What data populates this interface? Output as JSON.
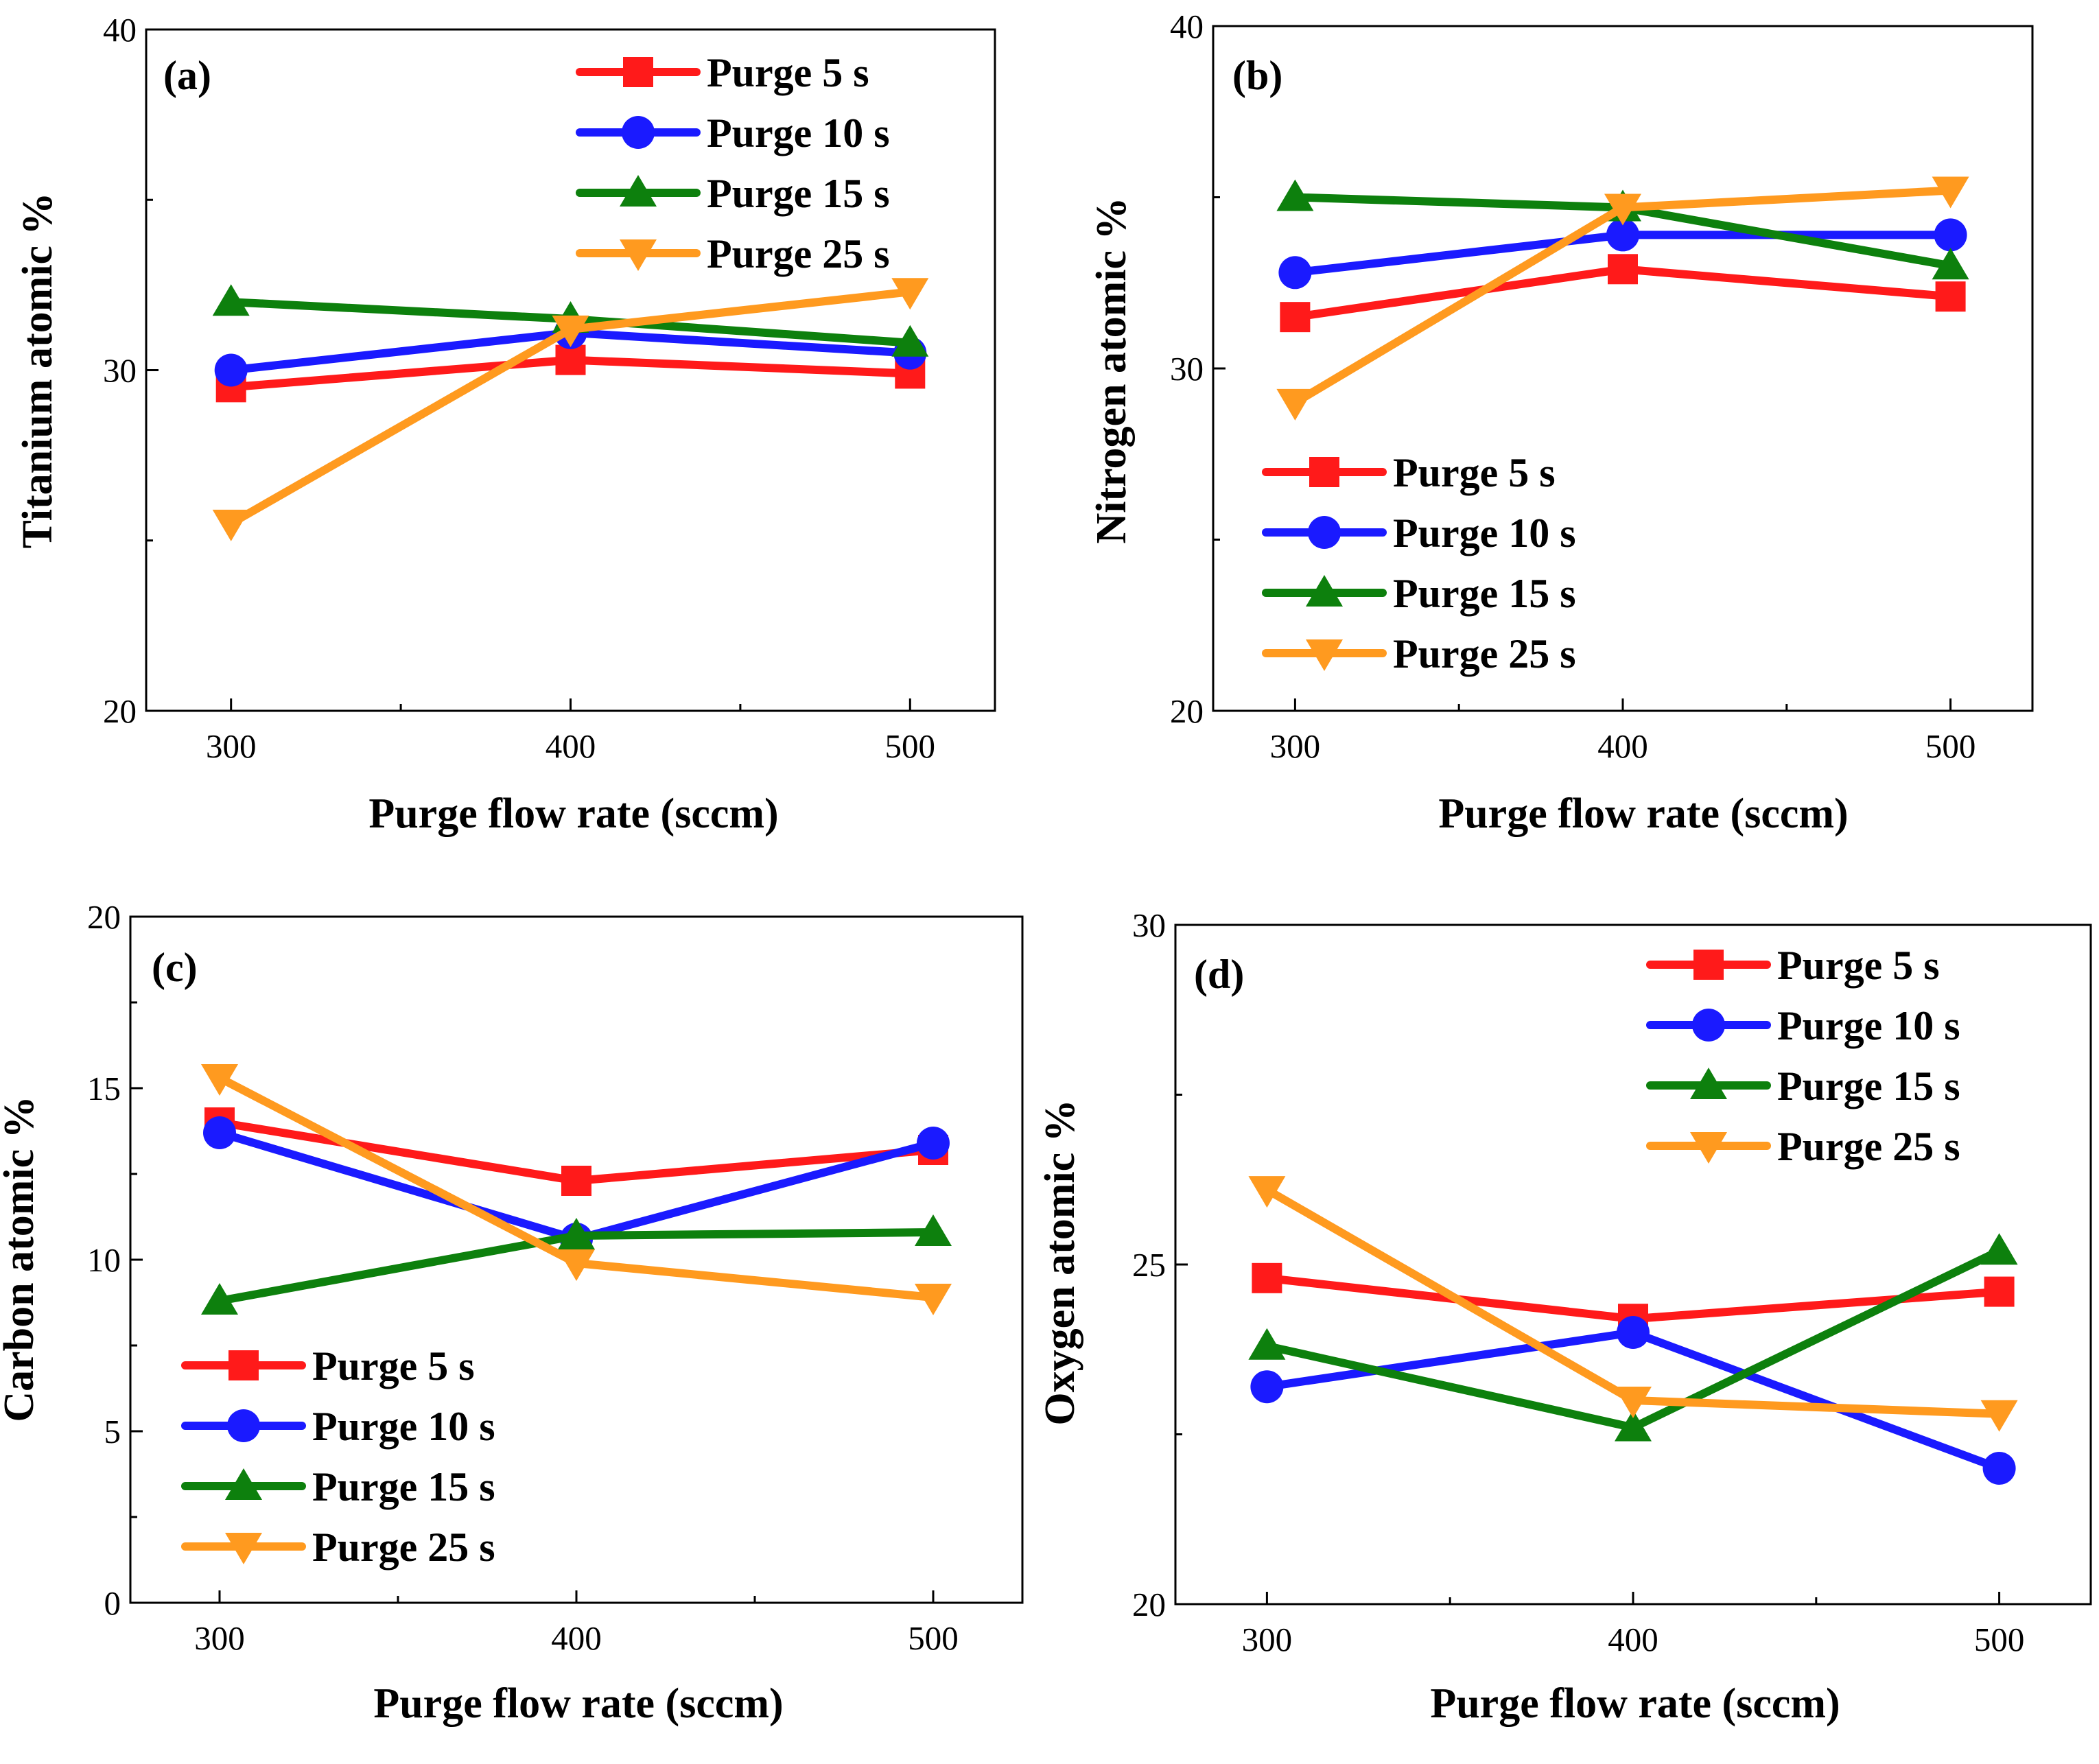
{
  "figure": {
    "colors": {
      "Purge 5 s": "#ff1a1a",
      "Purge 10 s": "#1a1aff",
      "Purge 15 s": "#0d800d",
      "Purge 25 s": "#ff9a1f"
    },
    "markers": {
      "Purge 5 s": "square",
      "Purge 10 s": "circle",
      "Purge 15 s": "triangle-up",
      "Purge 25 s": "triangle-down"
    }
  },
  "chart_data": [
    {
      "type": "line",
      "panel": "(a)",
      "xlabel": "Purge flow rate (sccm)",
      "ylabel": "Titanium atomic %",
      "x": [
        300,
        400,
        500
      ],
      "xticks": [
        300,
        400,
        500
      ],
      "xlim": [
        275,
        525
      ],
      "ylim": [
        20,
        40
      ],
      "yticks": [
        20,
        30,
        40
      ],
      "legend_position": "top-right",
      "series": [
        {
          "name": "Purge 5 s",
          "values": [
            29.5,
            30.3,
            29.9
          ]
        },
        {
          "name": "Purge 10 s",
          "values": [
            30.0,
            31.1,
            30.5
          ]
        },
        {
          "name": "Purge 15 s",
          "values": [
            32.0,
            31.5,
            30.8
          ]
        },
        {
          "name": "Purge 25 s",
          "values": [
            25.5,
            31.2,
            32.3
          ]
        }
      ]
    },
    {
      "type": "line",
      "panel": "(b)",
      "xlabel": "Purge flow rate (sccm)",
      "ylabel": "Nitrogen atomic %",
      "x": [
        300,
        400,
        500
      ],
      "xticks": [
        300,
        400,
        500
      ],
      "xlim": [
        275,
        525
      ],
      "ylim": [
        20,
        40
      ],
      "yticks": [
        20,
        30,
        40
      ],
      "legend_position": "bottom-left",
      "series": [
        {
          "name": "Purge 5 s",
          "values": [
            31.5,
            32.9,
            32.1
          ]
        },
        {
          "name": "Purge 10 s",
          "values": [
            32.8,
            33.9,
            33.9
          ]
        },
        {
          "name": "Purge 15 s",
          "values": [
            35.0,
            34.7,
            33.0
          ]
        },
        {
          "name": "Purge 25 s",
          "values": [
            29.0,
            34.7,
            35.2
          ]
        }
      ]
    },
    {
      "type": "line",
      "panel": "(c)",
      "xlabel": "Purge flow rate (sccm)",
      "ylabel": "Carbon atomic %",
      "x": [
        300,
        400,
        500
      ],
      "xticks": [
        300,
        400,
        500
      ],
      "xlim": [
        275,
        525
      ],
      "ylim": [
        0,
        20
      ],
      "yticks": [
        0,
        5,
        10,
        15,
        20
      ],
      "legend_position": "bottom-left",
      "series": [
        {
          "name": "Purge 5 s",
          "values": [
            14.0,
            12.3,
            13.2
          ]
        },
        {
          "name": "Purge 10 s",
          "values": [
            13.7,
            10.6,
            13.4
          ]
        },
        {
          "name": "Purge 15 s",
          "values": [
            8.8,
            10.7,
            10.8
          ]
        },
        {
          "name": "Purge 25 s",
          "values": [
            15.3,
            9.9,
            8.9
          ]
        }
      ]
    },
    {
      "type": "line",
      "panel": "(d)",
      "xlabel": "Purge flow rate (sccm)",
      "ylabel": "Oxygen atomic %",
      "x": [
        300,
        400,
        500
      ],
      "xticks": [
        300,
        400,
        500
      ],
      "xlim": [
        275,
        525
      ],
      "ylim": [
        20,
        30
      ],
      "yticks": [
        20,
        25,
        30
      ],
      "legend_position": "top-right",
      "series": [
        {
          "name": "Purge 5 s",
          "values": [
            24.8,
            24.2,
            24.6
          ]
        },
        {
          "name": "Purge 10 s",
          "values": [
            23.2,
            24.0,
            22.0
          ]
        },
        {
          "name": "Purge 15 s",
          "values": [
            23.8,
            22.6,
            25.2
          ]
        },
        {
          "name": "Purge 25 s",
          "values": [
            26.1,
            23.0,
            22.8
          ]
        }
      ]
    }
  ]
}
